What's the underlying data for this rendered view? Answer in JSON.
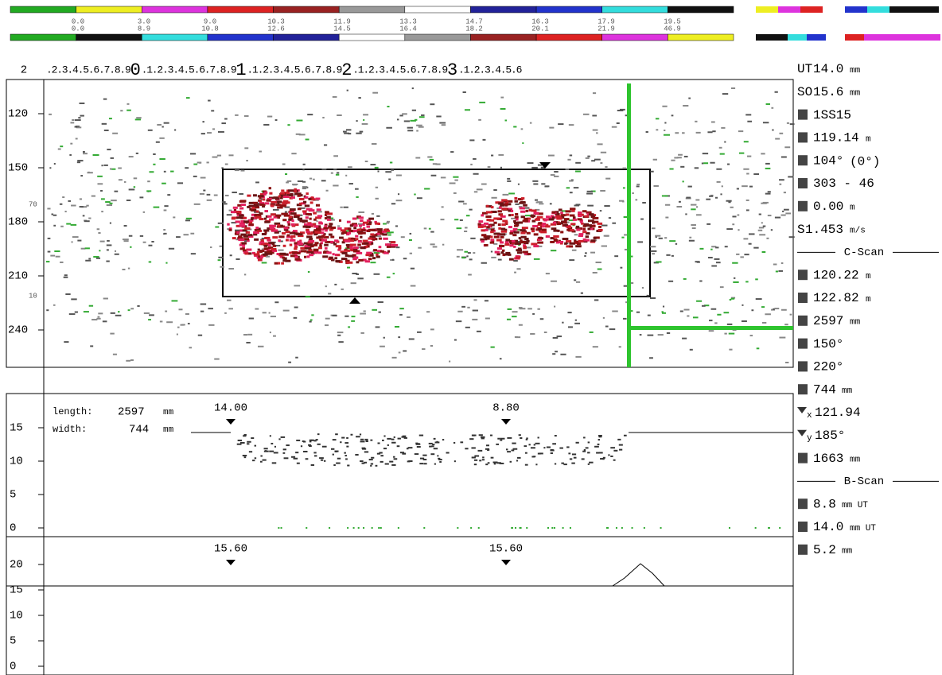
{
  "color_bars": {
    "top_labels": [
      "0.0",
      "3.0",
      "9.0",
      "10.3",
      "11.9",
      "13.3",
      "14.7",
      "16.3",
      "17.9",
      "19.5"
    ],
    "bottom_labels": [
      "0.0",
      "8.9",
      "10.8",
      "12.6",
      "14.5",
      "16.4",
      "18.2",
      "20.1",
      "21.9",
      "46.9"
    ]
  },
  "ruler": {
    "corner": "2",
    "segments": [
      ".2.3.4.5.6.7.8.9",
      "0",
      ".1.2.3.4.5.6.7.8.9",
      "1",
      ".1.2.3.4.5.6.7.8.9",
      "2",
      ".1.2.3.4.5.6.7.8.9",
      "3",
      ".1.2.3.4.5.6"
    ]
  },
  "cscan": {
    "y_labels": [
      "120",
      "150",
      "180",
      "210",
      "240"
    ],
    "faint_labels": [
      "70",
      "10"
    ]
  },
  "profile_upper": {
    "length_label": "length:",
    "length_value": "2597",
    "length_unit": "mm",
    "width_label": "width:",
    "width_value": "744",
    "width_unit": "mm",
    "markers": [
      "14.00",
      "8.80"
    ],
    "y_labels": [
      "15",
      "10",
      "5",
      "0"
    ]
  },
  "profile_lower": {
    "markers": [
      "15.60",
      "15.60"
    ],
    "y_labels": [
      "20",
      "15",
      "10",
      "5",
      "0"
    ]
  },
  "readouts": [
    {
      "label": "UT",
      "value": "14.0",
      "unit": "mm"
    },
    {
      "label": "SO",
      "value": "15.6",
      "unit": "mm"
    },
    {
      "value": "1SS15"
    },
    {
      "value": "119.14",
      "unit": "m"
    },
    {
      "value": "104°",
      "unit": "(0°)"
    },
    {
      "value": "303 - 46"
    },
    {
      "value": "0.00",
      "unit": "m"
    },
    {
      "label": "S",
      "value": "1.453",
      "unit": "m/s"
    },
    {
      "section": "C-Scan"
    },
    {
      "value": "120.22",
      "unit": "m"
    },
    {
      "value": "122.82",
      "unit": "m"
    },
    {
      "value": "2597",
      "unit": "mm"
    },
    {
      "value": "150°"
    },
    {
      "value": "220°"
    },
    {
      "value": "744",
      "unit": "mm"
    },
    {
      "label": "x",
      "value": "121.94"
    },
    {
      "label": "y",
      "value": "185°"
    },
    {
      "value": "1663",
      "unit": "mm"
    },
    {
      "section": "B-Scan"
    },
    {
      "value": "8.8",
      "unit": "mm UT"
    },
    {
      "value": "14.0",
      "unit": "mm UT"
    },
    {
      "value": "5.2",
      "unit": "mm"
    }
  ]
}
